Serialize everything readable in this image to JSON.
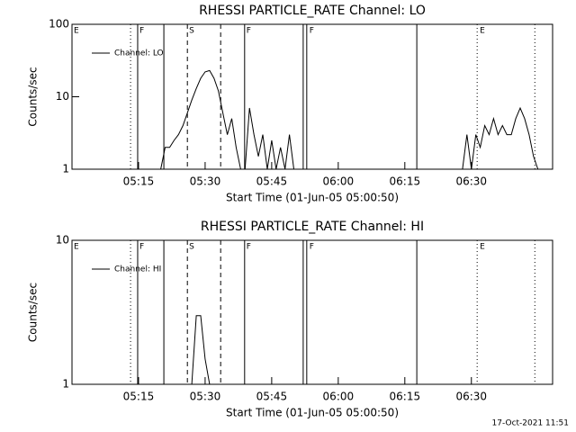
{
  "timestamp": "17-Oct-2021 11:51",
  "chart_data": [
    {
      "type": "line",
      "title": "RHESSI PARTICLE_RATE Channel: LO",
      "x_label": "Start Time (01-Jun-05 05:00:50)",
      "y_label": "Counts/sec",
      "log_y": true,
      "xlim": [
        0,
        108.3
      ],
      "ylim": [
        1,
        100
      ],
      "yticks": [
        1,
        10,
        100
      ],
      "xticks": [
        {
          "value": 15,
          "label": "05:15"
        },
        {
          "value": 30,
          "label": "05:30"
        },
        {
          "value": 45,
          "label": "05:45"
        },
        {
          "value": 60,
          "label": "06:00"
        },
        {
          "value": 75,
          "label": "06:15"
        },
        {
          "value": 90,
          "label": "06:30"
        }
      ],
      "markers": [
        {
          "x": 13.2,
          "style": "dotted"
        },
        {
          "x": 14.8,
          "style": "solid"
        },
        {
          "x": 20.7,
          "style": "solid"
        },
        {
          "x": 26,
          "style": "dashed"
        },
        {
          "x": 33.5,
          "style": "dashed"
        },
        {
          "x": 38.9,
          "style": "solid"
        },
        {
          "x": 52.1,
          "style": "solid"
        },
        {
          "x": 52.9,
          "style": "solid"
        },
        {
          "x": 77.7,
          "style": "solid"
        },
        {
          "x": 91.3,
          "style": "dotted"
        },
        {
          "x": 104.3,
          "style": "dotted"
        }
      ],
      "flags": [
        {
          "x": 0.4,
          "label": "E"
        },
        {
          "x": 15.2,
          "label": "F"
        },
        {
          "x": 26.4,
          "label": "S"
        },
        {
          "x": 39.3,
          "label": "F"
        },
        {
          "x": 53.5,
          "label": "F"
        },
        {
          "x": 91.9,
          "label": "E"
        }
      ],
      "x": [
        20,
        21,
        22,
        23,
        24,
        25,
        26,
        27,
        28,
        29,
        30,
        31,
        32,
        33,
        34,
        35,
        36,
        37,
        38,
        38.5,
        39,
        40,
        41,
        42,
        43,
        44,
        45,
        46,
        47,
        48,
        49,
        50,
        51,
        88,
        89,
        90,
        91,
        92,
        93,
        94,
        95,
        96,
        97,
        98,
        99,
        100,
        101,
        102,
        103,
        104,
        105
      ],
      "series": [
        {
          "name": "Channel: LO",
          "color": "#000000",
          "values": [
            1,
            2,
            2,
            2.5,
            3,
            4,
            6,
            9,
            13,
            18,
            22,
            23,
            18,
            12,
            6,
            3,
            5,
            2,
            1,
            null,
            1,
            7,
            3,
            1.5,
            3,
            1,
            2.5,
            1,
            2,
            1,
            3,
            1,
            null,
            1,
            3,
            1,
            3,
            2,
            4,
            3,
            5,
            3,
            4,
            3,
            3,
            5,
            7,
            5,
            3,
            1.5,
            1
          ]
        }
      ]
    },
    {
      "type": "line",
      "title": "RHESSI PARTICLE_RATE Channel: HI",
      "x_label": "Start Time (01-Jun-05 05:00:50)",
      "y_label": "Counts/sec",
      "log_y": true,
      "xlim": [
        0,
        108.3
      ],
      "ylim": [
        1,
        10
      ],
      "yticks": [
        1,
        10
      ],
      "xticks": [
        {
          "value": 15,
          "label": "05:15"
        },
        {
          "value": 30,
          "label": "05:30"
        },
        {
          "value": 45,
          "label": "05:45"
        },
        {
          "value": 60,
          "label": "06:00"
        },
        {
          "value": 75,
          "label": "06:15"
        },
        {
          "value": 90,
          "label": "06:30"
        }
      ],
      "markers": [
        {
          "x": 13.2,
          "style": "dotted"
        },
        {
          "x": 14.8,
          "style": "solid"
        },
        {
          "x": 20.7,
          "style": "solid"
        },
        {
          "x": 26,
          "style": "dashed"
        },
        {
          "x": 33.5,
          "style": "dashed"
        },
        {
          "x": 38.9,
          "style": "solid"
        },
        {
          "x": 52.1,
          "style": "solid"
        },
        {
          "x": 52.9,
          "style": "solid"
        },
        {
          "x": 77.7,
          "style": "solid"
        },
        {
          "x": 91.3,
          "style": "dotted"
        },
        {
          "x": 104.3,
          "style": "dotted"
        }
      ],
      "flags": [
        {
          "x": 0.4,
          "label": "E"
        },
        {
          "x": 15.2,
          "label": "F"
        },
        {
          "x": 26.4,
          "label": "S"
        },
        {
          "x": 39.3,
          "label": "F"
        },
        {
          "x": 53.5,
          "label": "F"
        },
        {
          "x": 91.9,
          "label": "E"
        }
      ],
      "x": [
        27,
        28,
        29,
        30,
        31
      ],
      "series": [
        {
          "name": "Channel: HI",
          "color": "#000000",
          "values": [
            1,
            3,
            3,
            1.5,
            1
          ]
        }
      ]
    }
  ]
}
